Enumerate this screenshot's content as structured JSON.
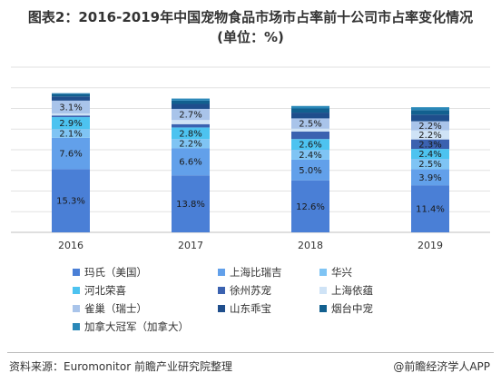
{
  "title_line1": "图表2：2016-2019年中国宠物食品市场市占率前十公司市占率变化情况",
  "title_line2": "(单位：%)",
  "source": "资料来源：Euromonitor 前瞻产业研究院整理",
  "credit": "@前瞻经济学人APP",
  "chart_data": {
    "type": "bar",
    "stacked": true,
    "categories": [
      "2016",
      "2017",
      "2018",
      "2019"
    ],
    "series": [
      {
        "name": "玛氏（美国）",
        "color": "#4a7fd6",
        "values": [
          15.3,
          13.8,
          12.6,
          11.4
        ],
        "labels": [
          "15.3%",
          "13.8%",
          "12.6%",
          "11.4%"
        ],
        "label_color": "#1a1a1a"
      },
      {
        "name": "上海比瑞吉",
        "color": "#62a0ea",
        "values": [
          7.6,
          6.6,
          5.0,
          3.9
        ],
        "labels": [
          "7.6%",
          "6.6%",
          "5.0%",
          "3.9%"
        ],
        "label_color": "#1a1a1a"
      },
      {
        "name": "华兴",
        "color": "#7fc4f4",
        "values": [
          2.1,
          2.2,
          2.4,
          2.5
        ],
        "labels": [
          "2.1%",
          "2.2%",
          "2.4%",
          "2.5%"
        ],
        "label_color": "#1a1a1a"
      },
      {
        "name": "河北荣喜",
        "color": "#4dc3f0",
        "values": [
          2.9,
          2.8,
          2.6,
          2.4
        ],
        "labels": [
          "2.9%",
          "2.8%",
          "2.6%",
          "2.4%"
        ],
        "label_color": "#1a1a1a"
      },
      {
        "name": "徐州苏宠",
        "color": "#3b62b0",
        "values": [
          0.4,
          0.8,
          1.8,
          2.3
        ],
        "labels": [
          "",
          "",
          "",
          "2.3%"
        ],
        "label_color": "#1a1a1a"
      },
      {
        "name": "上海依蕴",
        "color": "#cfe3f6",
        "values": [
          0.5,
          1.0,
          0.7,
          2.2
        ],
        "labels": [
          "",
          "",
          "",
          "2.2%"
        ],
        "label_color": "#1a1a1a"
      },
      {
        "name": "雀巢（瑞士）",
        "color": "#a9c4ea",
        "values": [
          3.1,
          2.7,
          2.5,
          2.2
        ],
        "labels": [
          "3.1%",
          "2.7%",
          "2.5%",
          "2.2%"
        ],
        "label_color": "#1a1a1a"
      },
      {
        "name": "山东乖宝",
        "color": "#1f4e8c",
        "values": [
          1.0,
          1.2,
          1.4,
          1.6
        ],
        "labels": [
          "",
          "",
          "",
          ""
        ],
        "label_color": "#ffffff"
      },
      {
        "name": "烟台中宠",
        "color": "#12608f",
        "values": [
          0.6,
          0.8,
          1.0,
          1.1
        ],
        "labels": [
          "",
          "",
          "",
          ""
        ],
        "label_color": "#ffffff"
      },
      {
        "name": "加拿大冠军（加拿大）",
        "color": "#2a88b8",
        "values": [
          0.2,
          0.5,
          0.6,
          0.7
        ],
        "labels": [
          "",
          "",
          "",
          ""
        ],
        "label_color": "#ffffff"
      }
    ],
    "ylim": [
      0,
      40
    ],
    "grid": true,
    "legend_position": "bottom"
  }
}
